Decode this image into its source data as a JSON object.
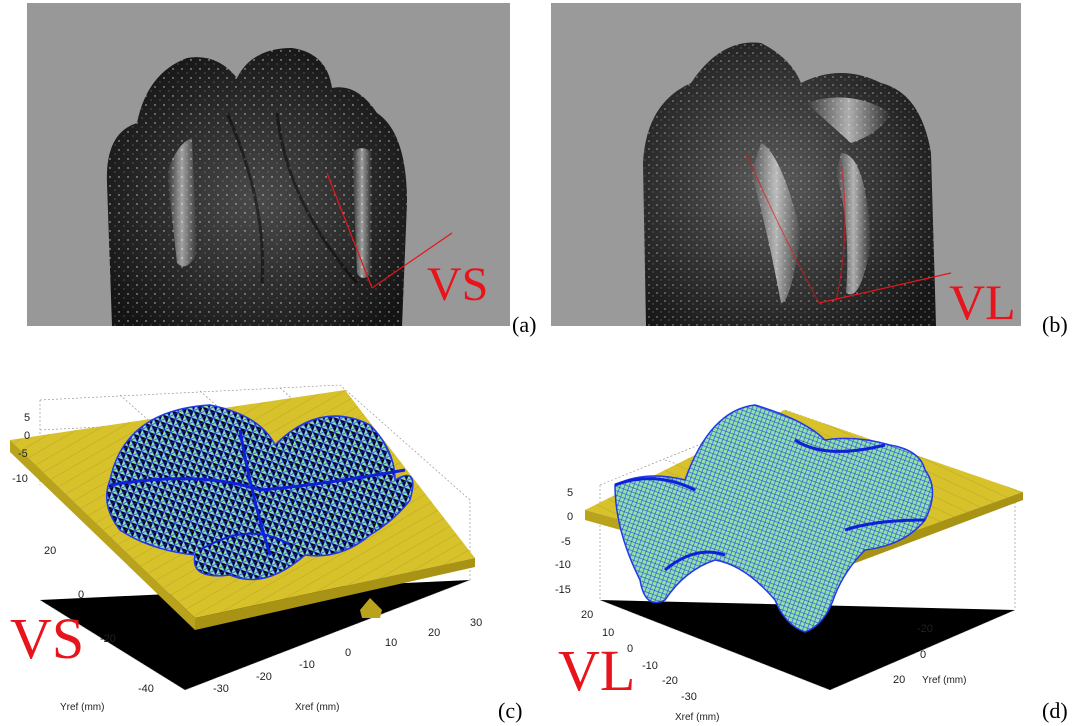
{
  "panels": {
    "a": {
      "caption": "(a)",
      "photo_label": "VS",
      "label_color": "#e8141b",
      "background": "#989898"
    },
    "b": {
      "caption": "(b)",
      "photo_label": "VL",
      "label_color": "#e8141b",
      "background": "#9a9a9a"
    },
    "c": {
      "caption": "(c)",
      "plot_label": "VS",
      "z_ticks": [
        "5",
        "0",
        "-5",
        "-10"
      ],
      "y_ticks": [
        "20",
        "0",
        "-20",
        "-40"
      ],
      "x_ticks": [
        "-30",
        "-20",
        "-10",
        "0",
        "10",
        "20",
        "30"
      ],
      "x_axis_label": "Xref (mm)",
      "y_axis_label": "Yref (mm)",
      "surface_color": "#d8c22c",
      "mesh_color": "#2438e8",
      "face_color": "#8fe3a8"
    },
    "d": {
      "caption": "(d)",
      "plot_label": "VL",
      "z_ticks": [
        "5",
        "0",
        "-5",
        "-10",
        "-15"
      ],
      "x_ticks": [
        "20",
        "10",
        "0",
        "-10",
        "-20",
        "-30"
      ],
      "y_ticks": [
        "-20",
        "0",
        "20"
      ],
      "x_axis_label": "Xref (mm)",
      "y_axis_label": "Yref (mm)",
      "surface_color": "#d8c22c",
      "mesh_color": "#2438e8",
      "face_color": "#8fe3a8"
    }
  }
}
